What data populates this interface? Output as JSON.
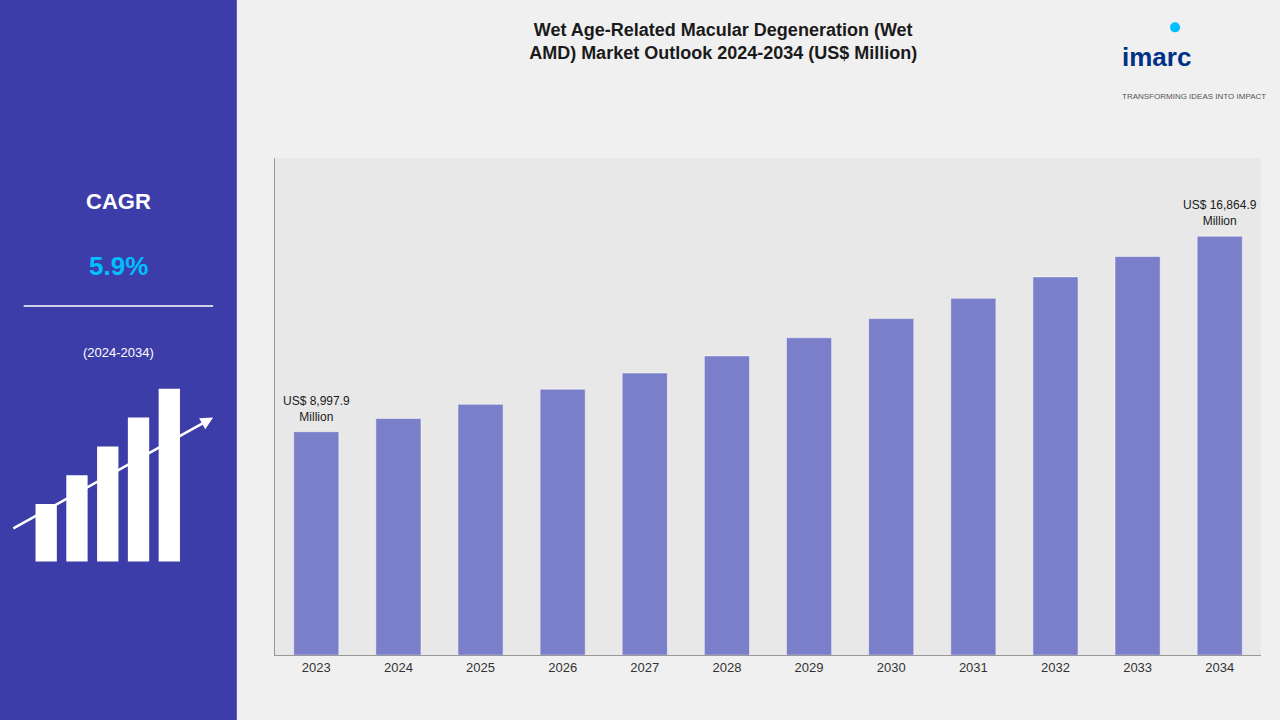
{
  "chart_data": {
    "type": "bar",
    "title": "Wet Age-Related Macular Degeneration (Wet\nAMD) Market Outlook 2024-2034 (US$ Million)",
    "categories": [
      "2023",
      "2024",
      "2025",
      "2026",
      "2027",
      "2028",
      "2029",
      "2030",
      "2031",
      "2032",
      "2033",
      "2034"
    ],
    "values": [
      8997.9,
      9530.0,
      10100.0,
      10710.0,
      11360.0,
      12050.0,
      12780.0,
      13550.0,
      14370.0,
      15230.0,
      16050.0,
      16864.9
    ],
    "color": "#7B7EC8",
    "ylim": [
      0,
      20000
    ],
    "grid": false,
    "tick_labels": "x",
    "annotations": [
      {
        "text": "US$ 8,997.9\nMillion",
        "category": "2023"
      },
      {
        "text": "US$ 16,864.9\nMillion",
        "category": "2034"
      },
      {
        "text": "CAGR"
      },
      {
        "text": "5.9%",
        "color": "#00BFFF"
      },
      {
        "text": "(2024-2034)"
      },
      {
        "text": "imarc",
        "color": "#003087"
      },
      {
        "text": "TRANSFORMING IDEAS INTO IMPACT"
      }
    ]
  }
}
